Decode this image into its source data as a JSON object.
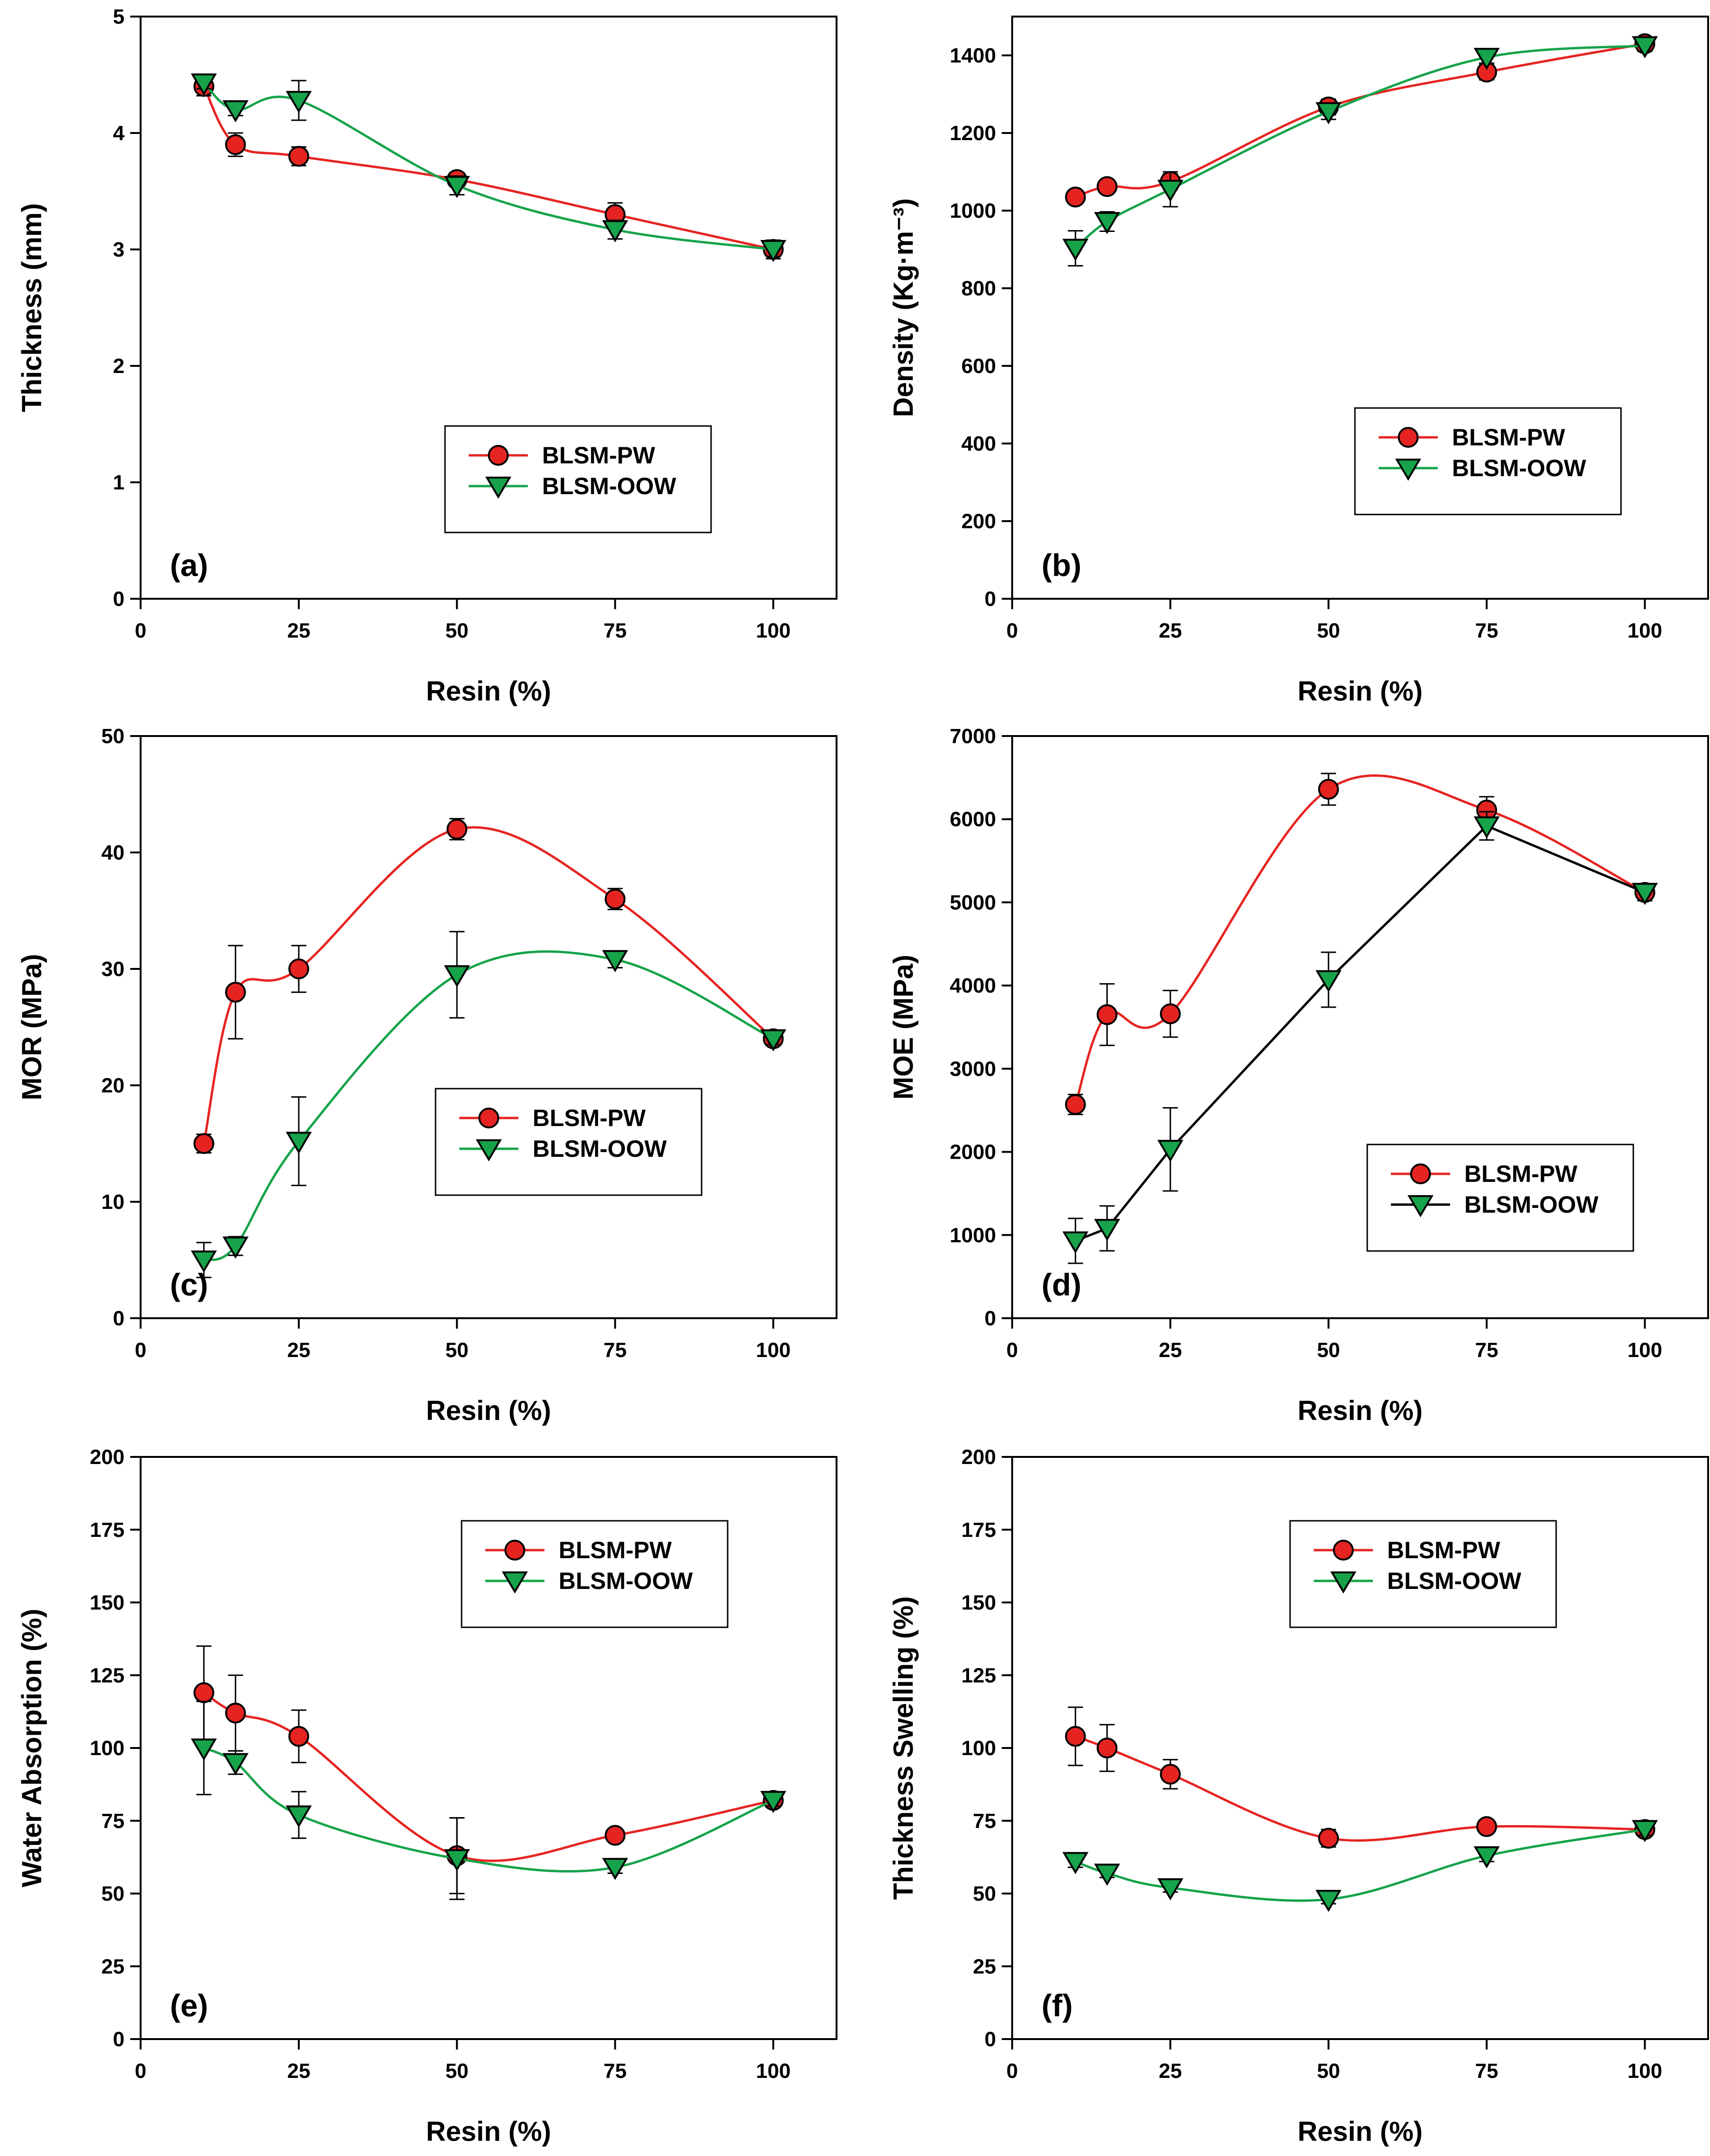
{
  "figure": {
    "panels": [
      {
        "id": "a",
        "panel_label": "(a)",
        "xlabel": "Resin (%)",
        "ylabel": "Thickness (mm)"
      },
      {
        "id": "b",
        "panel_label": "(b)",
        "xlabel": "Resin (%)",
        "ylabel": "Density (Kg·m⁻³)"
      },
      {
        "id": "c",
        "panel_label": "(c)",
        "xlabel": "Resin (%)",
        "ylabel": "MOR (MPa)"
      },
      {
        "id": "d",
        "panel_label": "(d)",
        "xlabel": "Resin (%)",
        "ylabel": "MOE (MPa)"
      },
      {
        "id": "e",
        "panel_label": "(e)",
        "xlabel": "Resin (%)",
        "ylabel": "Water Absorption (%)"
      },
      {
        "id": "f",
        "panel_label": "(f)",
        "xlabel": "Resin (%)",
        "ylabel": "Thickness Swelling (%)"
      }
    ]
  },
  "chart_data": [
    {
      "id": "a",
      "type": "line",
      "title": "",
      "panel_label": "(a)",
      "xlabel": "Resin (%)",
      "ylabel": "Thickness (mm)",
      "xlim": [
        0,
        110
      ],
      "ylim": [
        0,
        5
      ],
      "xticks": [
        "0",
        "25",
        "50",
        "75",
        "100"
      ],
      "yticks": [
        "0",
        "1",
        "2",
        "3",
        "4",
        "5"
      ],
      "x": [
        10,
        15,
        25,
        50,
        75,
        100
      ],
      "legend_position": "center-right",
      "series": [
        {
          "name": "BLSM-PW",
          "color": "#e52421",
          "marker": "circle",
          "values": [
            4.4,
            3.9,
            3.8,
            3.6,
            3.3,
            3.0
          ],
          "errors": [
            0.08,
            0.1,
            0.08,
            0.06,
            0.1,
            0.08
          ]
        },
        {
          "name": "BLSM-OOW",
          "color": "#16a34a",
          "marker": "triangle-down",
          "values": [
            4.43,
            4.2,
            4.28,
            3.55,
            3.17,
            3.0
          ],
          "errors": [
            0.05,
            0.05,
            0.17,
            0.08,
            0.08,
            0.06
          ]
        }
      ]
    },
    {
      "id": "b",
      "type": "line",
      "title": "",
      "panel_label": "(b)",
      "xlabel": "Resin (%)",
      "ylabel": "Density (Kg·m⁻³)",
      "xlim": [
        0,
        110
      ],
      "ylim": [
        0,
        1500
      ],
      "xticks": [
        "0",
        "25",
        "50",
        "75",
        "100"
      ],
      "yticks": [
        "0",
        "200",
        "400",
        "600",
        "800",
        "1000",
        "1200",
        "1400"
      ],
      "x": [
        10,
        15,
        25,
        50,
        75,
        100
      ],
      "legend_position": "center-right",
      "series": [
        {
          "name": "BLSM-PW",
          "color": "#e52421",
          "marker": "circle",
          "values": [
            1035,
            1062,
            1075,
            1267,
            1357,
            1430
          ],
          "errors": [
            15,
            15,
            20,
            20,
            20,
            15
          ]
        },
        {
          "name": "BLSM-OOW",
          "color": "#16a34a",
          "marker": "triangle-down",
          "values": [
            903,
            972,
            1055,
            1255,
            1395,
            1425
          ],
          "errors": [
            45,
            25,
            45,
            20,
            15,
            15
          ]
        }
      ]
    },
    {
      "id": "c",
      "type": "line",
      "title": "",
      "panel_label": "(c)",
      "xlabel": "Resin (%)",
      "ylabel": "MOR (MPa)",
      "xlim": [
        0,
        110
      ],
      "ylim": [
        0,
        50
      ],
      "xticks": [
        "0",
        "25",
        "50",
        "75",
        "100"
      ],
      "yticks": [
        "0",
        "10",
        "20",
        "30",
        "40",
        "50"
      ],
      "x": [
        10,
        15,
        25,
        50,
        75,
        100
      ],
      "legend_position": "center-right",
      "series": [
        {
          "name": "BLSM-PW",
          "color": "#e52421",
          "marker": "circle",
          "values": [
            15,
            28,
            30,
            42,
            36,
            24
          ],
          "errors": [
            0.8,
            4,
            2,
            0.9,
            0.9,
            0.5
          ]
        },
        {
          "name": "BLSM-OOW",
          "color": "#16a34a",
          "marker": "triangle-down",
          "values": [
            5,
            6.2,
            15.2,
            29.5,
            30.8,
            24
          ],
          "errors": [
            1.5,
            0.8,
            3.8,
            3.7,
            0.7,
            0.5
          ]
        }
      ]
    },
    {
      "id": "d",
      "type": "line",
      "title": "",
      "panel_label": "(d)",
      "xlabel": "Resin (%)",
      "ylabel": "MOE (MPa)",
      "xlim": [
        0,
        110
      ],
      "ylim": [
        0,
        7000
      ],
      "xticks": [
        "0",
        "25",
        "50",
        "75",
        "100"
      ],
      "yticks": [
        "0",
        "1000",
        "2000",
        "3000",
        "4000",
        "5000",
        "6000",
        "7000"
      ],
      "x": [
        10,
        15,
        25,
        50,
        75,
        100
      ],
      "legend_position": "bottom-right",
      "series": [
        {
          "name": "BLSM-PW",
          "color": "#e52421",
          "marker": "circle",
          "values": [
            2570,
            3650,
            3660,
            6360,
            6110,
            5120
          ],
          "errors": [
            120,
            370,
            280,
            190,
            160,
            100
          ]
        },
        {
          "name": "BLSM-OOW",
          "color": "#000000",
          "marker": "triangle-down",
          "values": [
            930,
            1080,
            2030,
            4070,
            5920,
            5120
          ],
          "errors": [
            270,
            270,
            500,
            330,
            170,
            100
          ]
        }
      ]
    },
    {
      "id": "e",
      "type": "line",
      "title": "",
      "panel_label": "(e)",
      "xlabel": "Resin (%)",
      "ylabel": "Water Absorption (%)",
      "xlim": [
        0,
        110
      ],
      "ylim": [
        0,
        200
      ],
      "xticks": [
        "0",
        "25",
        "50",
        "75",
        "100"
      ],
      "yticks": [
        "0",
        "25",
        "50",
        "75",
        "100",
        "125",
        "150",
        "175",
        "200"
      ],
      "x": [
        10,
        15,
        25,
        50,
        75,
        100
      ],
      "legend_position": "top-right",
      "series": [
        {
          "name": "BLSM-PW",
          "color": "#e52421",
          "marker": "circle",
          "values": [
            119,
            112,
            104,
            63,
            70,
            82
          ],
          "errors": [
            16,
            13,
            9,
            13,
            2,
            2
          ]
        },
        {
          "name": "BLSM-OOW",
          "color": "#16a34a",
          "marker": "triangle-down",
          "values": [
            100,
            95,
            77,
            62,
            59,
            82
          ],
          "errors": [
            16,
            4,
            8,
            14,
            2,
            2
          ]
        }
      ]
    },
    {
      "id": "f",
      "type": "line",
      "title": "",
      "panel_label": "(f)",
      "xlabel": "Resin (%)",
      "ylabel": "Thickness Swelling (%)",
      "xlim": [
        0,
        110
      ],
      "ylim": [
        0,
        200
      ],
      "xticks": [
        "0",
        "25",
        "50",
        "75",
        "100"
      ],
      "yticks": [
        "0",
        "25",
        "50",
        "75",
        "100",
        "125",
        "150",
        "175",
        "200"
      ],
      "x": [
        10,
        15,
        25,
        50,
        75,
        100
      ],
      "legend_position": "top-right",
      "series": [
        {
          "name": "BLSM-PW",
          "color": "#e52421",
          "marker": "circle",
          "values": [
            104,
            100,
            91,
            69,
            73,
            72
          ],
          "errors": [
            10,
            8,
            5,
            3,
            2,
            2
          ]
        },
        {
          "name": "BLSM-OOW",
          "color": "#16a34a",
          "marker": "triangle-down",
          "values": [
            61,
            57,
            52,
            48,
            63,
            72
          ],
          "errors": [
            2,
            1.5,
            1.5,
            1.5,
            2,
            2
          ]
        }
      ]
    }
  ]
}
